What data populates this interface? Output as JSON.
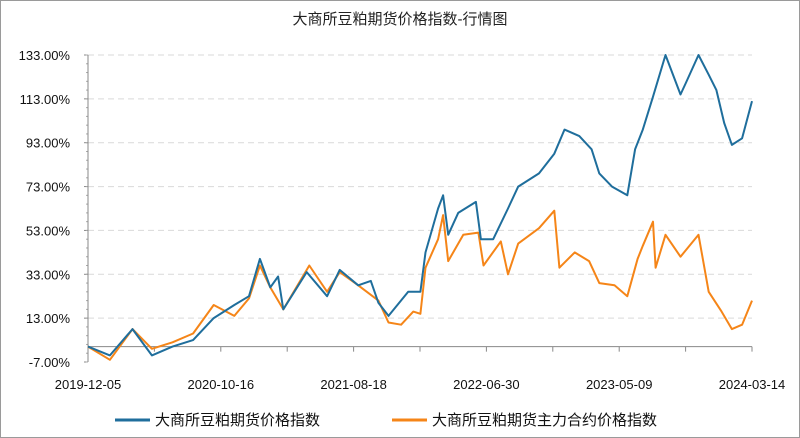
{
  "chart_data": {
    "type": "line",
    "title": "大商所豆粕期货价格指数-行情图",
    "xlabel": "",
    "ylabel": "",
    "ylim": [
      -7,
      133
    ],
    "y_ticks": [
      "133.00%",
      "113.00%",
      "93.00%",
      "73.00%",
      "53.00%",
      "33.00%",
      "13.00%",
      "-7.00%"
    ],
    "y_tick_values": [
      133,
      113,
      93,
      73,
      53,
      33,
      13,
      -7
    ],
    "x_ticks": [
      "2019-12-05",
      "2020-10-16",
      "2021-08-18",
      "2022-06-30",
      "2023-05-09",
      "2024-03-14"
    ],
    "grid": "horizontal dashed",
    "legend_position": "bottom",
    "series": [
      {
        "name": "大商所豆粕期货价格指数",
        "color": "#1f6e9c",
        "points": [
          [
            "2019-12-05",
            0
          ],
          [
            "2020-01-26",
            -4
          ],
          [
            "2020-03-20",
            8
          ],
          [
            "2020-05-05",
            -4
          ],
          [
            "2020-06-23",
            0
          ],
          [
            "2020-08-11",
            3
          ],
          [
            "2020-09-29",
            13
          ],
          [
            "2020-11-16",
            19
          ],
          [
            "2020-12-20",
            23
          ],
          [
            "2021-01-14",
            40
          ],
          [
            "2021-02-07",
            27
          ],
          [
            "2021-02-25",
            32
          ],
          [
            "2021-03-09",
            17
          ],
          [
            "2021-05-02",
            34
          ],
          [
            "2021-06-18",
            23
          ],
          [
            "2021-07-17",
            35
          ],
          [
            "2021-08-29",
            28
          ],
          [
            "2021-09-28",
            30
          ],
          [
            "2021-10-16",
            20
          ],
          [
            "2021-11-09",
            14
          ],
          [
            "2021-12-26",
            25
          ],
          [
            "2022-01-24",
            25
          ],
          [
            "2022-02-05",
            43
          ],
          [
            "2022-03-07",
            63
          ],
          [
            "2022-03-19",
            69
          ],
          [
            "2022-03-31",
            51
          ],
          [
            "2022-04-24",
            61
          ],
          [
            "2022-06-05",
            66
          ],
          [
            "2022-06-17",
            49
          ],
          [
            "2022-07-16",
            49
          ],
          [
            "2022-08-20",
            63
          ],
          [
            "2022-09-13",
            73
          ],
          [
            "2022-11-01",
            79
          ],
          [
            "2022-12-07",
            88
          ],
          [
            "2022-12-31",
            99
          ],
          [
            "2023-02-04",
            96
          ],
          [
            "2023-03-05",
            90
          ],
          [
            "2023-03-23",
            79
          ],
          [
            "2023-04-22",
            73
          ],
          [
            "2023-05-28",
            69
          ],
          [
            "2023-06-15",
            90
          ],
          [
            "2023-07-03",
            99
          ],
          [
            "2023-07-27",
            114
          ],
          [
            "2023-08-25",
            133
          ],
          [
            "2023-09-29",
            115
          ],
          [
            "2023-10-11",
            120
          ],
          [
            "2023-11-10",
            133
          ],
          [
            "2023-12-04",
            124
          ],
          [
            "2023-12-22",
            117
          ],
          [
            "2024-01-09",
            102
          ],
          [
            "2024-01-27",
            92
          ],
          [
            "2024-02-20",
            95
          ],
          [
            "2024-03-14",
            112
          ]
        ]
      },
      {
        "name": "大商所豆粕期货主力合约价格指数",
        "color": "#f58518",
        "points": [
          [
            "2019-12-05",
            0
          ],
          [
            "2020-01-26",
            -6
          ],
          [
            "2020-03-20",
            8
          ],
          [
            "2020-05-05",
            -1
          ],
          [
            "2020-06-23",
            2
          ],
          [
            "2020-08-11",
            6
          ],
          [
            "2020-09-29",
            19
          ],
          [
            "2020-11-16",
            14
          ],
          [
            "2020-12-20",
            22
          ],
          [
            "2021-01-14",
            37
          ],
          [
            "2021-02-07",
            27
          ],
          [
            "2021-03-09",
            17
          ],
          [
            "2021-05-08",
            37
          ],
          [
            "2021-06-18",
            25
          ],
          [
            "2021-07-17",
            34
          ],
          [
            "2021-08-29",
            28
          ],
          [
            "2021-10-16",
            21
          ],
          [
            "2021-11-09",
            11
          ],
          [
            "2021-12-09",
            10
          ],
          [
            "2022-01-07",
            16
          ],
          [
            "2022-01-24",
            15
          ],
          [
            "2022-02-05",
            36
          ],
          [
            "2022-03-07",
            49
          ],
          [
            "2022-03-19",
            60
          ],
          [
            "2022-03-31",
            39
          ],
          [
            "2022-05-06",
            51
          ],
          [
            "2022-06-11",
            52
          ],
          [
            "2022-06-23",
            37
          ],
          [
            "2022-08-03",
            48
          ],
          [
            "2022-08-20",
            33
          ],
          [
            "2022-09-13",
            47
          ],
          [
            "2022-11-01",
            54
          ],
          [
            "2022-12-07",
            62
          ],
          [
            "2022-12-19",
            36
          ],
          [
            "2023-01-24",
            43
          ],
          [
            "2023-02-27",
            39
          ],
          [
            "2023-03-23",
            29
          ],
          [
            "2023-04-28",
            28
          ],
          [
            "2023-05-28",
            23
          ],
          [
            "2023-06-21",
            40
          ],
          [
            "2023-07-03",
            46
          ],
          [
            "2023-07-27",
            57
          ],
          [
            "2023-08-02",
            36
          ],
          [
            "2023-08-25",
            51
          ],
          [
            "2023-09-29",
            41
          ],
          [
            "2023-11-10",
            51
          ],
          [
            "2023-12-04",
            25
          ],
          [
            "2024-01-03",
            16
          ],
          [
            "2024-01-27",
            8
          ],
          [
            "2024-02-20",
            10
          ],
          [
            "2024-03-14",
            21
          ]
        ]
      }
    ]
  }
}
